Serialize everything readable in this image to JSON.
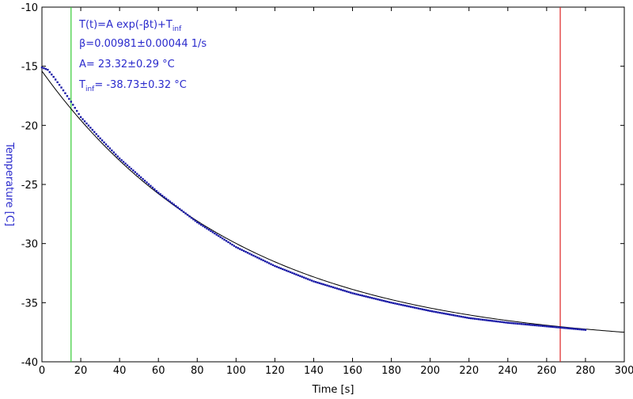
{
  "chart_data": {
    "type": "scatter",
    "xlabel": "Time [s]",
    "ylabel": "Temperature [C]",
    "xlim": [
      0,
      300
    ],
    "ylim": [
      -40,
      -10
    ],
    "x_ticks": [
      0,
      20,
      40,
      60,
      80,
      100,
      120,
      140,
      160,
      180,
      200,
      220,
      240,
      260,
      280,
      300
    ],
    "y_ticks": [
      -10,
      -15,
      -20,
      -25,
      -30,
      -35,
      -40
    ],
    "grid": false,
    "colors": {
      "data": "#1a1aa6",
      "fit": "#000000",
      "label": "#2a2acc",
      "start_marker": "#33cc33",
      "end_marker": "#dd2222"
    },
    "vertical_lines": [
      {
        "x": 15,
        "color": "#33cc33"
      },
      {
        "x": 267,
        "color": "#dd2222"
      }
    ],
    "fit": {
      "formula": "T(t)=A exp(-βt)+T",
      "formula_sub": "inf",
      "beta_text": "β=0.00981±0.00044 1/s",
      "a_text": "A= 23.32±0.29 °C",
      "tinf_main": "T",
      "tinf_sub": "inf",
      "tinf_text": "= -38.73±0.32 °C",
      "A": 23.32,
      "beta": 0.00981,
      "T_inf": -38.73,
      "x_range": [
        0,
        300
      ]
    },
    "series": [
      {
        "x": [
          0,
          3,
          6,
          10,
          15,
          20,
          30,
          40,
          60,
          80,
          100,
          120,
          140,
          160,
          180,
          200,
          220,
          240,
          260,
          270,
          280
        ],
        "y": [
          -15.1,
          -15.3,
          -15.9,
          -16.8,
          -18.0,
          -19.3,
          -21.1,
          -22.8,
          -25.7,
          -28.2,
          -30.3,
          -31.9,
          -33.2,
          -34.2,
          -35.0,
          -35.7,
          -36.3,
          -36.7,
          -37.0,
          -37.15,
          -37.3
        ]
      }
    ]
  }
}
